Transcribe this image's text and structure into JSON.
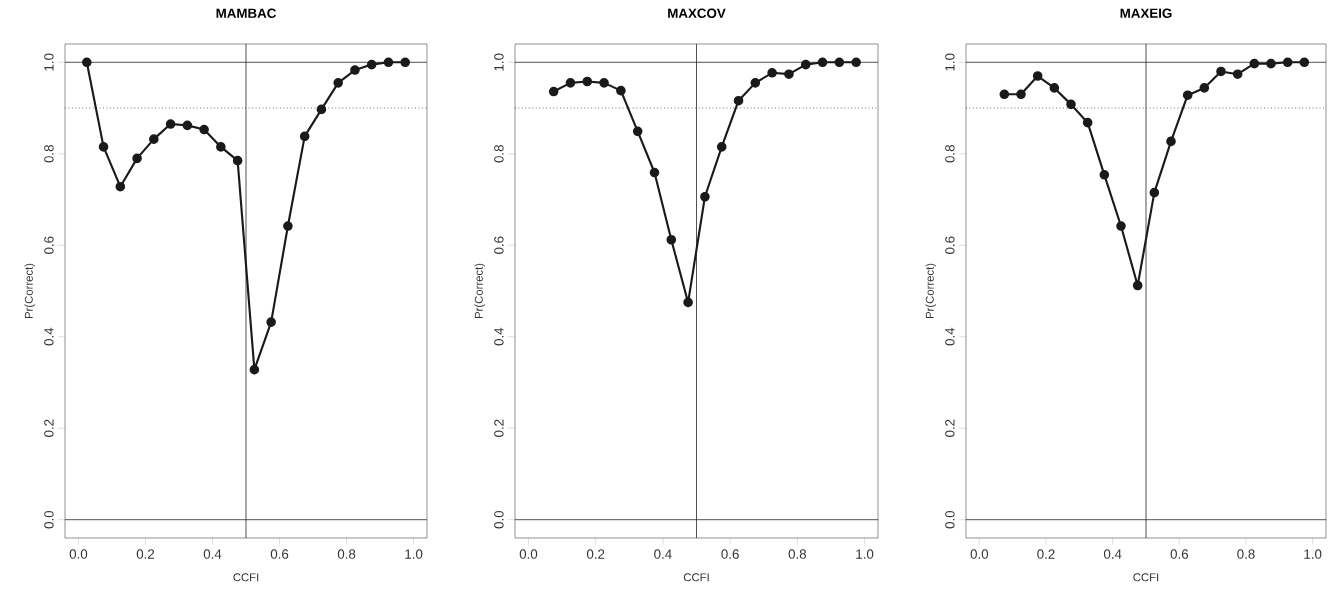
{
  "chart_data": [
    {
      "type": "line",
      "title": "MAMBAC",
      "xlabel": "CCFI",
      "ylabel": "Pr(Correct)",
      "marker": "circle",
      "line_style": "solid",
      "x": [
        0.025,
        0.075,
        0.125,
        0.175,
        0.225,
        0.275,
        0.325,
        0.375,
        0.425,
        0.475,
        0.525,
        0.575,
        0.625,
        0.675,
        0.725,
        0.775,
        0.825,
        0.875,
        0.925,
        0.975
      ],
      "series": [
        {
          "color": "#1a1a1a",
          "values": [
            1.0,
            0.815,
            0.728,
            0.79,
            0.832,
            0.865,
            0.862,
            0.853,
            0.815,
            0.785,
            0.328,
            0.432,
            0.642,
            0.838,
            0.897,
            0.955,
            0.983,
            0.995,
            1.0,
            1.0
          ]
        }
      ],
      "xlim": [
        -0.04,
        1.04
      ],
      "ylim": [
        -0.04,
        1.04
      ],
      "xticks": [
        {
          "value": 0,
          "label": "0.0"
        },
        {
          "value": 0.2,
          "label": "0.2"
        },
        {
          "value": 0.4,
          "label": "0.4"
        },
        {
          "value": 0.6,
          "label": "0.6"
        },
        {
          "value": 0.8,
          "label": "0.8"
        },
        {
          "value": 1,
          "label": "1.0"
        }
      ],
      "yticks": [
        {
          "value": 0,
          "label": "0.0"
        },
        {
          "value": 0.2,
          "label": "0.2"
        },
        {
          "value": 0.4,
          "label": "0.4"
        },
        {
          "value": 0.6,
          "label": "0.6"
        },
        {
          "value": 0.8,
          "label": "0.8"
        },
        {
          "value": 1,
          "label": "1.0"
        }
      ],
      "ref_lines": [
        {
          "axis": "y",
          "value": 1,
          "line_style": "solid"
        },
        {
          "axis": "y",
          "value": 0,
          "line_style": "solid"
        },
        {
          "axis": "y",
          "value": 0.9,
          "line_style": "dotted"
        },
        {
          "axis": "x",
          "value": 0.5,
          "line_style": "solid"
        }
      ]
    },
    {
      "type": "line",
      "title": "MAXCOV",
      "xlabel": "CCFI",
      "ylabel": "Pr(Correct)",
      "marker": "circle",
      "line_style": "solid",
      "x": [
        0.075,
        0.125,
        0.175,
        0.225,
        0.275,
        0.325,
        0.375,
        0.425,
        0.475,
        0.525,
        0.575,
        0.625,
        0.675,
        0.725,
        0.775,
        0.825,
        0.875,
        0.925,
        0.975
      ],
      "series": [
        {
          "color": "#1a1a1a",
          "values": [
            0.936,
            0.955,
            0.958,
            0.955,
            0.938,
            0.849,
            0.759,
            0.612,
            0.475,
            0.706,
            0.815,
            0.916,
            0.955,
            0.977,
            0.974,
            0.995,
            1.0,
            1.0,
            1.0
          ]
        }
      ],
      "xlim": [
        -0.04,
        1.04
      ],
      "ylim": [
        -0.04,
        1.04
      ],
      "xticks": [
        {
          "value": 0,
          "label": "0.0"
        },
        {
          "value": 0.2,
          "label": "0.2"
        },
        {
          "value": 0.4,
          "label": "0.4"
        },
        {
          "value": 0.6,
          "label": "0.6"
        },
        {
          "value": 0.8,
          "label": "0.8"
        },
        {
          "value": 1,
          "label": "1.0"
        }
      ],
      "yticks": [
        {
          "value": 0,
          "label": "0.0"
        },
        {
          "value": 0.2,
          "label": "0.2"
        },
        {
          "value": 0.4,
          "label": "0.4"
        },
        {
          "value": 0.6,
          "label": "0.6"
        },
        {
          "value": 0.8,
          "label": "0.8"
        },
        {
          "value": 1,
          "label": "1.0"
        }
      ],
      "ref_lines": [
        {
          "axis": "y",
          "value": 1,
          "line_style": "solid"
        },
        {
          "axis": "y",
          "value": 0,
          "line_style": "solid"
        },
        {
          "axis": "y",
          "value": 0.9,
          "line_style": "dotted"
        },
        {
          "axis": "x",
          "value": 0.5,
          "line_style": "solid"
        }
      ]
    },
    {
      "type": "line",
      "title": "MAXEIG",
      "xlabel": "CCFI",
      "ylabel": "Pr(Correct)",
      "marker": "circle",
      "line_style": "solid",
      "x": [
        0.075,
        0.125,
        0.175,
        0.225,
        0.275,
        0.325,
        0.375,
        0.425,
        0.475,
        0.525,
        0.575,
        0.625,
        0.675,
        0.725,
        0.775,
        0.825,
        0.875,
        0.925,
        0.975
      ],
      "series": [
        {
          "color": "#1a1a1a",
          "values": [
            0.93,
            0.93,
            0.97,
            0.944,
            0.908,
            0.868,
            0.754,
            0.642,
            0.512,
            0.715,
            0.827,
            0.928,
            0.944,
            0.98,
            0.974,
            0.997,
            0.997,
            1.0,
            1.0
          ]
        }
      ],
      "xlim": [
        -0.04,
        1.04
      ],
      "ylim": [
        -0.04,
        1.04
      ],
      "xticks": [
        {
          "value": 0,
          "label": "0.0"
        },
        {
          "value": 0.2,
          "label": "0.2"
        },
        {
          "value": 0.4,
          "label": "0.4"
        },
        {
          "value": 0.6,
          "label": "0.6"
        },
        {
          "value": 0.8,
          "label": "0.8"
        },
        {
          "value": 1,
          "label": "1.0"
        }
      ],
      "yticks": [
        {
          "value": 0,
          "label": "0.0"
        },
        {
          "value": 0.2,
          "label": "0.2"
        },
        {
          "value": 0.4,
          "label": "0.4"
        },
        {
          "value": 0.6,
          "label": "0.6"
        },
        {
          "value": 0.8,
          "label": "0.8"
        },
        {
          "value": 1,
          "label": "1.0"
        }
      ],
      "ref_lines": [
        {
          "axis": "y",
          "value": 1,
          "line_style": "solid"
        },
        {
          "axis": "y",
          "value": 0,
          "line_style": "solid"
        },
        {
          "axis": "y",
          "value": 0.9,
          "line_style": "dotted"
        },
        {
          "axis": "x",
          "value": 0.5,
          "line_style": "solid"
        }
      ]
    }
  ]
}
